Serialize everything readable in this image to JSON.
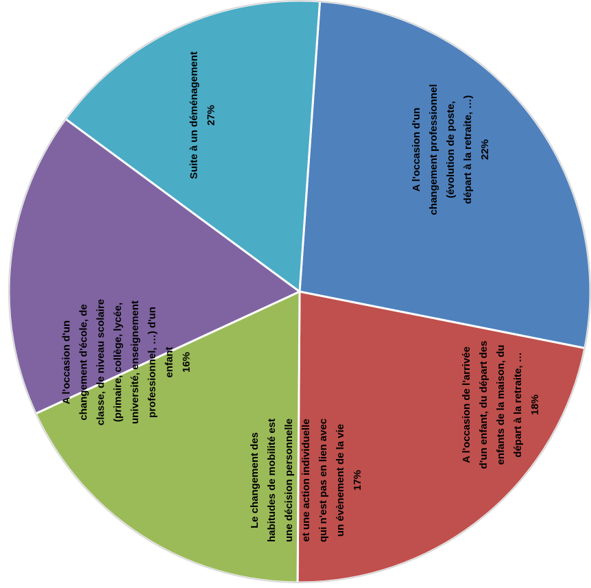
{
  "chart_data": {
    "type": "pie",
    "title": "",
    "slices": [
      {
        "lines": [
          "Suite à un déménagement"
        ],
        "pct_label": "27%",
        "value": 27,
        "color": "#4F81BD"
      },
      {
        "lines": [
          "A l'occasion d'un",
          "changement professionnel",
          "(évolution de poste,",
          "départ à la retraite, …)"
        ],
        "pct_label": "22%",
        "value": 22,
        "color": "#C0504D"
      },
      {
        "lines": [
          "A l'occasion de l'arrivée",
          "d'un enfant, du départ des",
          "enfants de la maison, du",
          "départ à la retraite, …"
        ],
        "pct_label": "18%",
        "value": 18,
        "color": "#9BBB59"
      },
      {
        "lines": [
          "Le changement des",
          "habitudes de mobilité est",
          "une décision personnelle",
          "et une action individuelle",
          "qui n'est pas en lien avec",
          "un évènement de la vie"
        ],
        "pct_label": "17%",
        "value": 17,
        "color": "#8064A2"
      },
      {
        "lines": [
          "A l'occasion d'un",
          "changement d'école, de",
          "classe, de niveau scolaire",
          "(primaire, collège, lycée,",
          "université, enseignement",
          "professionnel, …) d'un",
          "enfant"
        ],
        "pct_label": "16%",
        "value": 16,
        "color": "#4BACC6"
      }
    ]
  }
}
